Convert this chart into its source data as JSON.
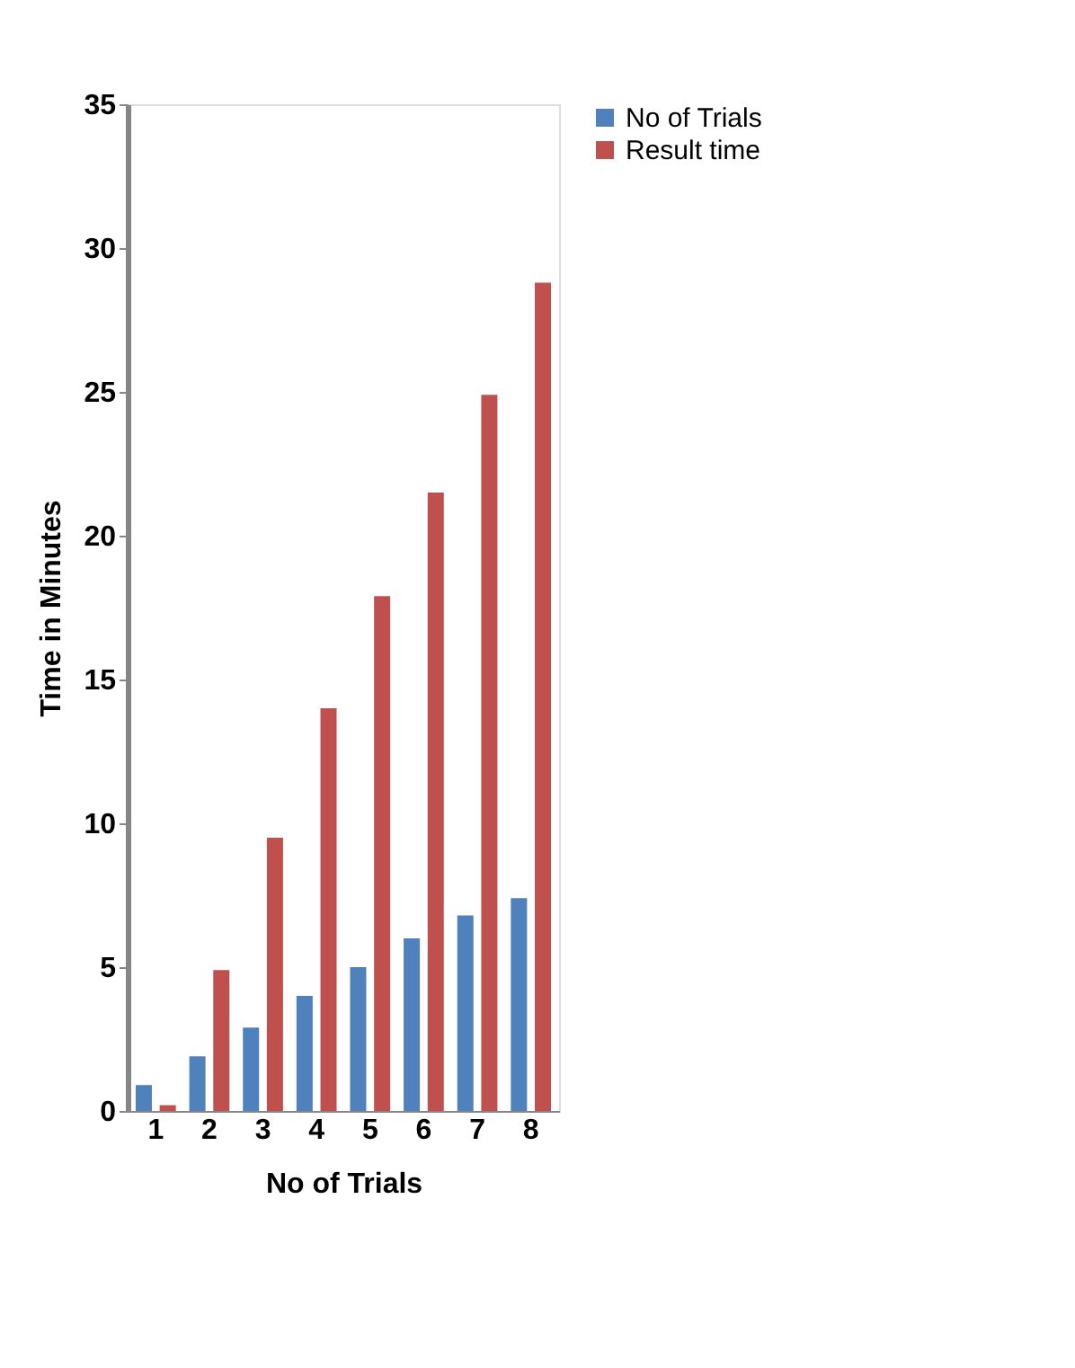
{
  "chart_data": {
    "type": "bar",
    "categories": [
      "1",
      "2",
      "3",
      "4",
      "5",
      "6",
      "7",
      "8"
    ],
    "series": [
      {
        "name": "No of Trials",
        "color": "#4f81bd",
        "values": [
          0.9,
          1.9,
          2.9,
          4.0,
          5.0,
          6.0,
          6.8,
          7.4
        ]
      },
      {
        "name": "Result time",
        "color": "#c0504d",
        "values": [
          0.2,
          4.9,
          9.5,
          14.0,
          17.9,
          21.5,
          24.9,
          28.8
        ]
      }
    ],
    "xlabel": "No of  Trials",
    "ylabel": "Time in Minutes",
    "ylim": [
      0,
      35
    ],
    "yticks": [
      0,
      5,
      10,
      15,
      20,
      25,
      30,
      35
    ],
    "grid": false,
    "legend": "right"
  }
}
